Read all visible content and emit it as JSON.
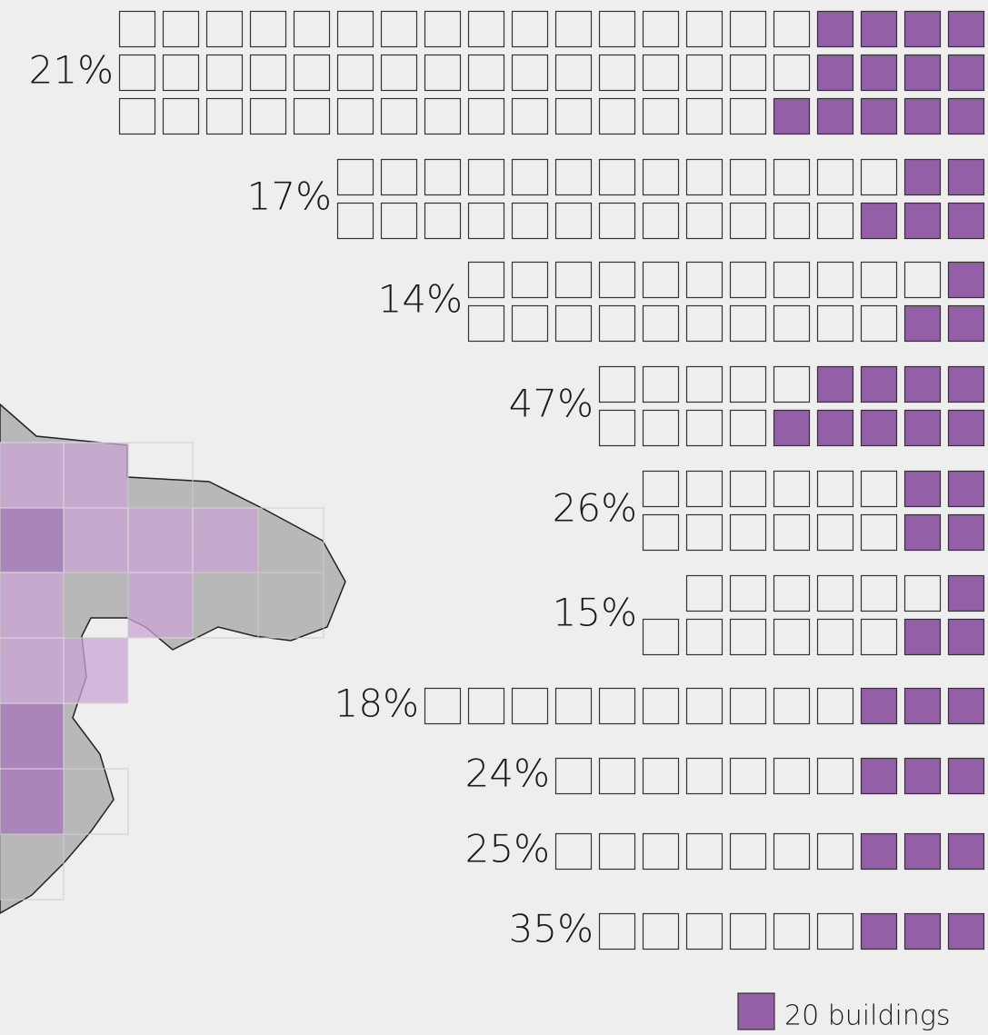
{
  "groups": [
    {
      "label": "21%",
      "rows": [
        {
          "squares": 20,
          "filled": 4
        },
        {
          "squares": 20,
          "filled": 4
        },
        {
          "squares": 20,
          "filled": 5
        }
      ]
    },
    {
      "label": "17%",
      "rows": [
        {
          "squares": 15,
          "filled": 2
        },
        {
          "squares": 15,
          "filled": 3
        }
      ]
    },
    {
      "label": "14%",
      "rows": [
        {
          "squares": 12,
          "filled": 1
        },
        {
          "squares": 12,
          "filled": 2
        }
      ]
    },
    {
      "label": "47%",
      "rows": [
        {
          "squares": 9,
          "filled": 4
        },
        {
          "squares": 9,
          "filled": 5
        }
      ]
    },
    {
      "label": "26%",
      "rows": [
        {
          "squares": 8,
          "filled": 2
        },
        {
          "squares": 8,
          "filled": 2
        }
      ]
    },
    {
      "label": "15%",
      "rows": [
        {
          "squares": 7,
          "filled": 1
        },
        {
          "squares": 8,
          "filled": 2
        }
      ]
    },
    {
      "label": "18%",
      "rows": [
        {
          "squares": 13,
          "filled": 3
        }
      ]
    },
    {
      "label": "24%",
      "rows": [
        {
          "squares": 10,
          "filled": 3
        }
      ]
    },
    {
      "label": "25%",
      "rows": [
        {
          "squares": 10,
          "filled": 3
        }
      ]
    },
    {
      "label": "35%",
      "rows": [
        {
          "squares": 9,
          "filled": 3
        }
      ]
    }
  ],
  "fill_color": "#935fa6",
  "legend": {
    "label": "20 buildings"
  }
}
